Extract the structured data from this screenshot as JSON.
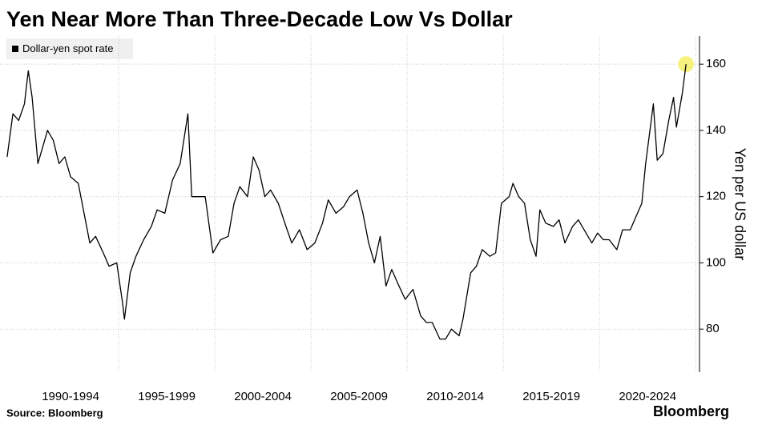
{
  "chart_data": {
    "type": "line",
    "title": "Yen Near More Than Three-Decade Low Vs Dollar",
    "source": "Source: Bloomberg",
    "brand": "Bloomberg",
    "ylabel": "Yen per US dollar",
    "series": [
      {
        "name": "Dollar-yen spot rate",
        "color": "#000000",
        "x": [
          1989.2,
          1989.5,
          1989.8,
          1990.1,
          1990.3,
          1990.5,
          1990.8,
          1991.0,
          1991.3,
          1991.6,
          1991.9,
          1992.2,
          1992.5,
          1992.9,
          1993.2,
          1993.5,
          1993.8,
          1994.2,
          1994.5,
          1994.9,
          1995.2,
          1995.3,
          1995.6,
          1995.9,
          1996.3,
          1996.7,
          1997.0,
          1997.4,
          1997.8,
          1998.2,
          1998.6,
          1998.8,
          1999.2,
          1999.5,
          1999.9,
          2000.3,
          2000.7,
          2001.0,
          2001.3,
          2001.7,
          2002.0,
          2002.3,
          2002.6,
          2002.9,
          2003.3,
          2003.7,
          2004.0,
          2004.4,
          2004.8,
          2005.2,
          2005.6,
          2005.9,
          2006.3,
          2006.7,
          2007.0,
          2007.4,
          2007.7,
          2008.0,
          2008.3,
          2008.6,
          2008.9,
          2009.2,
          2009.5,
          2009.9,
          2010.3,
          2010.7,
          2011.0,
          2011.3,
          2011.7,
          2012.0,
          2012.3,
          2012.7,
          2012.9,
          2013.3,
          2013.6,
          2013.9,
          2014.3,
          2014.6,
          2014.9,
          2015.3,
          2015.5,
          2015.8,
          2016.1,
          2016.4,
          2016.7,
          2016.9,
          2017.2,
          2017.6,
          2017.9,
          2018.2,
          2018.6,
          2018.9,
          2019.2,
          2019.6,
          2019.9,
          2020.2,
          2020.5,
          2020.9,
          2021.2,
          2021.6,
          2021.9,
          2022.2,
          2022.4,
          2022.8,
          2023.0,
          2023.3,
          2023.6,
          2023.85,
          2024.0,
          2024.3,
          2024.5
        ],
        "values": [
          132,
          145,
          143,
          148,
          158,
          150,
          130,
          134,
          140,
          137,
          130,
          132,
          126,
          124,
          115,
          106,
          108,
          103,
          99,
          100,
          88,
          83,
          97,
          102,
          107,
          111,
          116,
          115,
          125,
          130,
          145,
          120,
          120,
          120,
          103,
          107,
          108,
          118,
          123,
          120,
          132,
          128,
          120,
          122,
          118,
          111,
          106,
          110,
          104,
          106,
          112,
          119,
          115,
          117,
          120,
          122,
          115,
          106,
          100,
          108,
          93,
          98,
          94,
          89,
          92,
          84,
          82,
          82,
          77,
          77,
          80,
          78,
          83,
          97,
          99,
          104,
          102,
          103,
          118,
          120,
          124,
          120,
          118,
          107,
          102,
          116,
          112,
          111,
          113,
          106,
          111,
          113,
          110,
          106,
          109,
          107,
          107,
          104,
          110,
          110,
          114,
          118,
          130,
          148,
          131,
          133,
          143,
          150,
          141,
          151,
          160
        ]
      }
    ],
    "xlim": [
      1988.83,
      2025.2
    ],
    "xticks": [
      {
        "value": 1992.5,
        "label": "1990-1994"
      },
      {
        "value": 1997.5,
        "label": "1995-1999"
      },
      {
        "value": 2002.5,
        "label": "2000-2004"
      },
      {
        "value": 2007.5,
        "label": "2005-2009"
      },
      {
        "value": 2012.5,
        "label": "2010-2014"
      },
      {
        "value": 2017.5,
        "label": "2015-2019"
      },
      {
        "value": 2022.5,
        "label": "2020-2024"
      }
    ],
    "ylim": [
      67,
      168.5
    ],
    "yticks": [
      80,
      100,
      120,
      140,
      160
    ],
    "grid": true
  }
}
